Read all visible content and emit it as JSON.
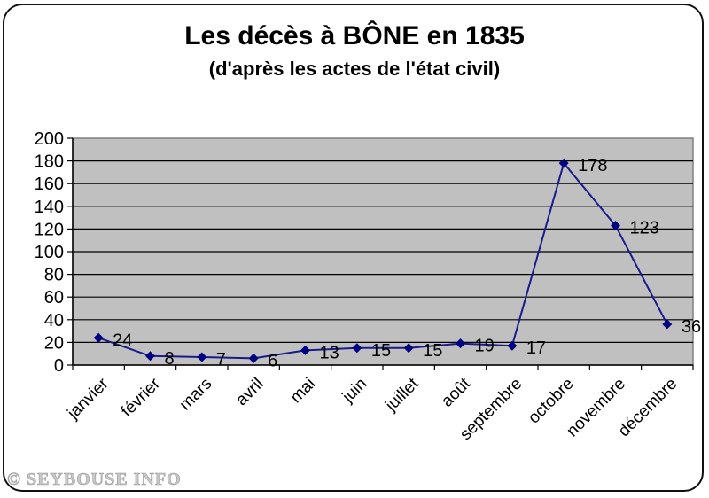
{
  "chart_data": {
    "type": "line",
    "title": "Les décès à BÔNE en 1835",
    "subtitle": "(d'après les actes de l'état civil)",
    "xlabel": "",
    "ylabel": "",
    "categories": [
      "janvier",
      "février",
      "mars",
      "avril",
      "mai",
      "juin",
      "juillet",
      "août",
      "septembre",
      "octobre",
      "novembre",
      "décembre"
    ],
    "values": [
      24,
      8,
      7,
      6,
      13,
      15,
      15,
      19,
      17,
      178,
      123,
      36
    ],
    "ylim": [
      0,
      200
    ],
    "yticks": [
      0,
      20,
      40,
      60,
      80,
      100,
      120,
      140,
      160,
      180,
      200
    ],
    "grid": true,
    "legend": null,
    "data_labels": true,
    "colors": {
      "plot_background": "#c0c0c0",
      "line": "#1a1a8c",
      "marker": "#000080",
      "gridline": "#000000"
    }
  },
  "watermark": "© SEYBOUSE INFO"
}
